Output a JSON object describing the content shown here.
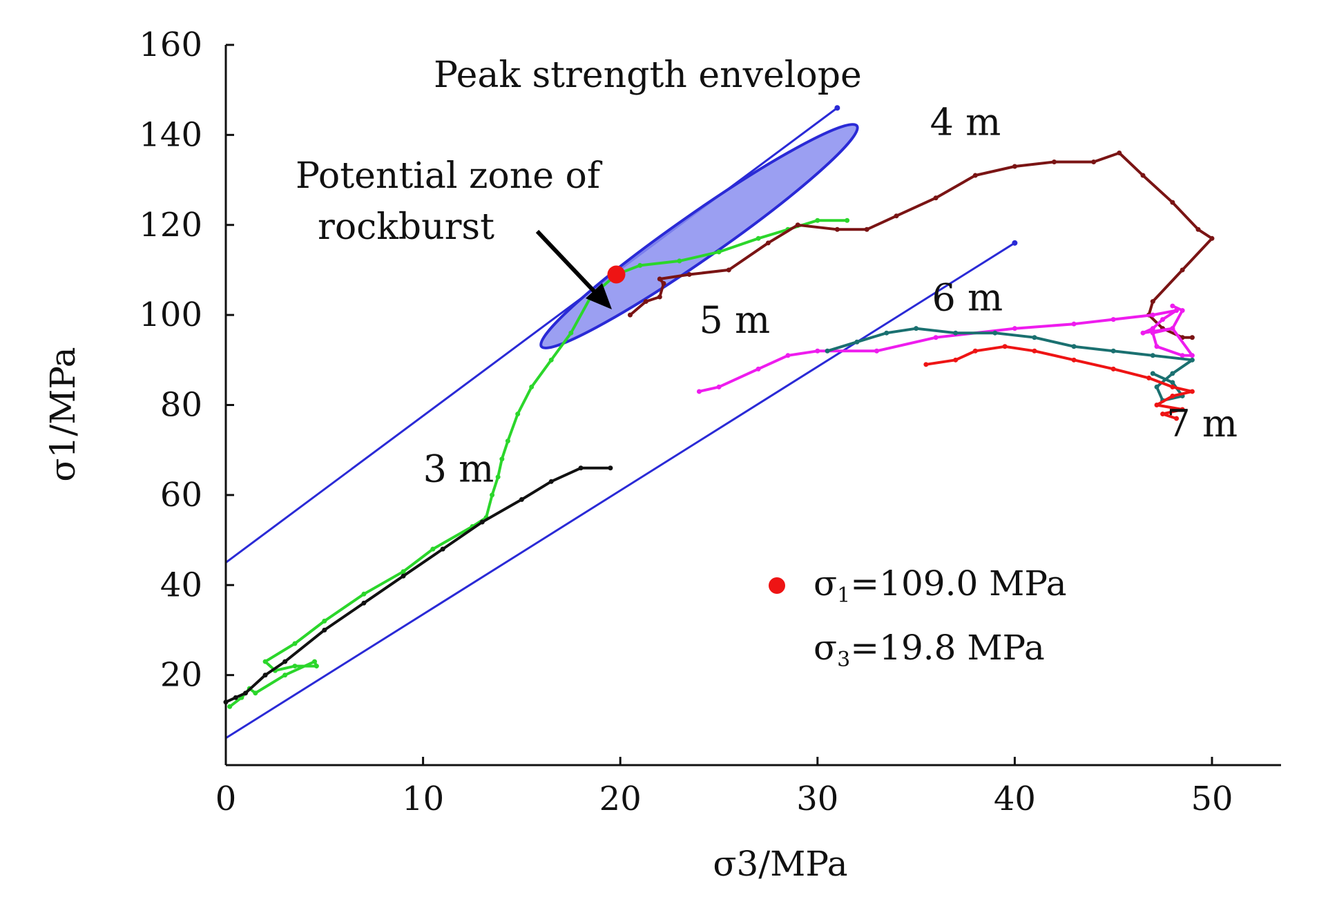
{
  "chart_data": {
    "type": "line",
    "xlabel": "σ3/MPa",
    "ylabel": "σ1/MPa",
    "xlim": [
      0,
      53
    ],
    "ylim": [
      0,
      160
    ],
    "x_ticks": [
      0,
      10,
      20,
      30,
      40,
      50
    ],
    "y_ticks": [
      20,
      40,
      60,
      80,
      100,
      120,
      140,
      160
    ],
    "x_tick_labels": [
      "0",
      "10",
      "20",
      "30",
      "40",
      "50"
    ],
    "y_tick_labels": [
      "20",
      "40",
      "60",
      "80",
      "100",
      "120",
      "140",
      "160"
    ],
    "grid": false,
    "annotations": {
      "peak_envelope": "Peak strength envelope",
      "zone_line1": "Potential zone of",
      "zone_line2": "rockburst"
    },
    "reference_lines": [
      {
        "color": "#2a2ad6",
        "x": [
          0,
          31
        ],
        "y": [
          45,
          146
        ]
      },
      {
        "color": "#2a2ad6",
        "x": [
          0,
          40
        ],
        "y": [
          6,
          116
        ]
      }
    ],
    "highlight_zone": {
      "color": "#8a8ef0",
      "edge_color": "#2a2ad6",
      "center": [
        24,
        116
      ],
      "endpoints": [
        [
          16,
          93
        ],
        [
          32,
          142
        ]
      ],
      "half_width_y": 5
    },
    "series": [
      {
        "name": "3 m",
        "color": "#2bd62b",
        "x": [
          0.2,
          0.8,
          1.2,
          1.5,
          3,
          4.5,
          4.6,
          3.5,
          2.5,
          2,
          3.5,
          5,
          7,
          9,
          10.5,
          12.5,
          13.2,
          13.5,
          13.8,
          14,
          14.3,
          14.8,
          15.5,
          16.5,
          17.5,
          18.5,
          19.8,
          21,
          23,
          25,
          27,
          28.5,
          30,
          31.5
        ],
        "y": [
          13,
          15,
          17,
          16,
          20,
          23,
          22,
          22,
          21,
          23,
          27,
          32,
          38,
          43,
          48,
          53,
          55,
          60,
          64,
          68,
          72,
          78,
          84,
          90,
          96,
          104,
          109,
          111,
          112,
          114,
          117,
          119,
          121,
          121
        ]
      },
      {
        "name": "",
        "color": "#111111",
        "x": [
          0,
          0.5,
          1,
          2,
          3,
          5,
          7,
          9,
          11,
          13,
          15,
          16.5,
          18,
          19.5
        ],
        "y": [
          14,
          15,
          16,
          20,
          23,
          30,
          36,
          42,
          48,
          54,
          59,
          63,
          66,
          66
        ]
      },
      {
        "name": "4 m",
        "color": "#7a1414",
        "x": [
          20.5,
          21.3,
          22,
          22.2,
          22,
          23.5,
          25.5,
          27.5,
          29,
          31,
          32.5,
          34,
          36,
          38,
          40,
          42,
          44,
          45.3,
          46.5,
          48,
          49.3,
          50,
          48.5,
          47,
          46.8,
          47.5,
          48.5,
          49
        ],
        "y": [
          100,
          103,
          104,
          107,
          108,
          109,
          110,
          116,
          120,
          119,
          119,
          122,
          126,
          131,
          133,
          134,
          134,
          136,
          131,
          125,
          119,
          117,
          110,
          103,
          100,
          97,
          95,
          95
        ]
      },
      {
        "name": "5 m",
        "color": "#ee1cee",
        "x": [
          24,
          25,
          27,
          28.5,
          30,
          33,
          36,
          40,
          43,
          45,
          47,
          48.2,
          47.5,
          47,
          46.5,
          48,
          49,
          48.5,
          47.2,
          47,
          48,
          48.5,
          48
        ],
        "y": [
          83,
          84,
          88,
          91,
          92,
          92,
          95,
          97,
          98,
          99,
          100,
          101,
          99,
          97,
          96,
          97,
          91,
          91,
          93,
          96,
          97,
          101,
          102
        ]
      },
      {
        "name": "6 m",
        "color": "#1a7070",
        "x": [
          30.5,
          32,
          33.5,
          35,
          37,
          39,
          41,
          43,
          45,
          47,
          49,
          48,
          47.2,
          47.5,
          48.5,
          48,
          47
        ],
        "y": [
          92,
          94,
          96,
          97,
          96,
          96,
          95,
          93,
          92,
          91,
          90,
          87,
          84,
          81,
          82,
          85,
          87
        ]
      },
      {
        "name": "7 m",
        "color": "#ee1414",
        "x": [
          35.5,
          37,
          38,
          39.5,
          41,
          43,
          45,
          46.8,
          48,
          49,
          48,
          47.2,
          48.5,
          47.5,
          48.2
        ],
        "y": [
          89,
          90,
          92,
          93,
          92,
          90,
          88,
          86,
          84,
          83,
          82,
          80,
          79,
          78,
          77
        ]
      }
    ],
    "labels_on_chart": [
      {
        "text": "3 m",
        "x": 11.8,
        "y": 63
      },
      {
        "text": "4 m",
        "x": 37.5,
        "y": 140
      },
      {
        "text": "5 m",
        "x": 25.8,
        "y": 96
      },
      {
        "text": "6 m",
        "x": 37.6,
        "y": 101
      },
      {
        "text": "7 m",
        "x": 49.5,
        "y": 73
      }
    ],
    "highlight_point": {
      "color": "#ee1414",
      "x": 19.8,
      "y": 109.0
    },
    "legend": {
      "placement": "bottom-right",
      "marker_color": "#ee1414",
      "line1_sym": "σ",
      "line1_sub": "1",
      "line1_value": "=109.0 MPa",
      "line2_sym": "σ",
      "line2_sub": "3",
      "line2_value": "=19.8 MPa"
    }
  }
}
